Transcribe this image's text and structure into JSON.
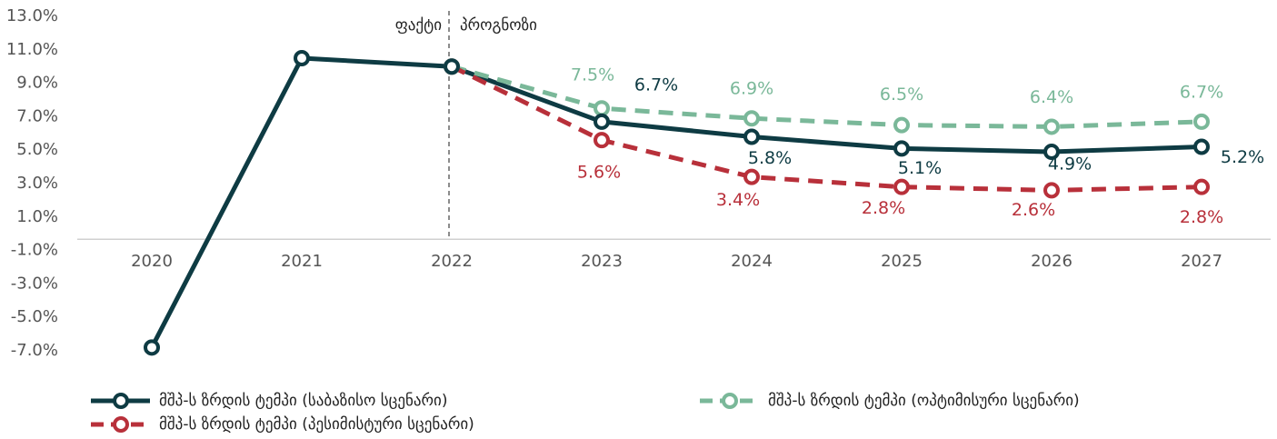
{
  "chart_data": {
    "type": "line",
    "categories": [
      "2020",
      "2021",
      "2022",
      "2023",
      "2024",
      "2025",
      "2026",
      "2027"
    ],
    "ylim": [
      -7,
      13
    ],
    "yticks": [
      {
        "value": 13,
        "label": "13.0%"
      },
      {
        "value": 11,
        "label": "11.0%"
      },
      {
        "value": 9,
        "label": "9.0%"
      },
      {
        "value": 7,
        "label": "7.0%"
      },
      {
        "value": 5,
        "label": "5.0%"
      },
      {
        "value": 3,
        "label": "3.0%"
      },
      {
        "value": 1,
        "label": "1.0%"
      },
      {
        "value": -1,
        "label": "-1.0%"
      },
      {
        "value": -3,
        "label": "-3.0%"
      },
      {
        "value": -5,
        "label": "-5.0%"
      },
      {
        "value": -7,
        "label": "-7.0%"
      }
    ],
    "annotations": [
      "ფაქტი",
      "პროგნოზი"
    ],
    "series": [
      {
        "name": "მშპ-ს ზრდის ტემპი (საბაზისო სცენარი)",
        "color": "#0e3b43",
        "dashed": false,
        "values": [
          -6.8,
          10.5,
          10.0,
          6.7,
          5.8,
          5.1,
          4.9,
          5.2
        ],
        "value_labels": [
          null,
          null,
          null,
          "6.7%",
          "5.8%",
          "5.1%",
          "4.9%",
          "5.2%"
        ]
      },
      {
        "name": "მშპ-ს ზრდის ტემპი (ოპტიმისური სცენარი)",
        "color": "#7ab899",
        "dashed": true,
        "values": [
          null,
          null,
          10.0,
          7.5,
          6.9,
          6.5,
          6.4,
          6.7
        ],
        "value_labels": [
          null,
          null,
          null,
          "7.5%",
          "6.9%",
          "6.5%",
          "6.4%",
          "6.7%"
        ]
      },
      {
        "name": "მშპ-ს ზრდის ტემპი (პესიმისტური სცენარი)",
        "color": "#b8303a",
        "dashed": true,
        "values": [
          null,
          null,
          10.0,
          5.6,
          3.4,
          2.8,
          2.6,
          2.8
        ],
        "value_labels": [
          null,
          null,
          null,
          "5.6%",
          "3.4%",
          "2.8%",
          "2.6%",
          "2.8%"
        ]
      }
    ]
  }
}
